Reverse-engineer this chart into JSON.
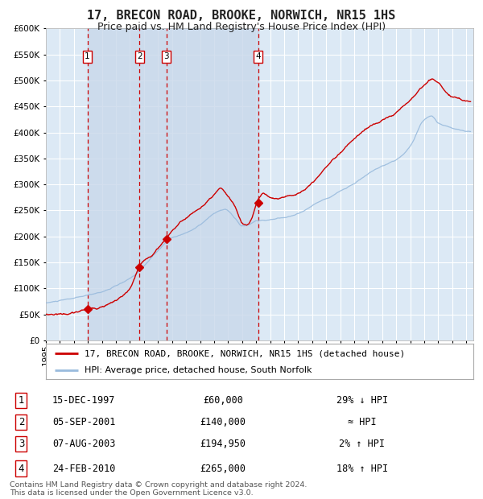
{
  "title": "17, BRECON ROAD, BROOKE, NORWICH, NR15 1HS",
  "subtitle": "Price paid vs. HM Land Registry's House Price Index (HPI)",
  "background_color": "#dce9f5",
  "grid_color": "#ffffff",
  "sale_color": "#cc0000",
  "hpi_color": "#99bbdd",
  "purchases": [
    {
      "num": 1,
      "date_str": "15-DEC-1997",
      "price": 60000,
      "rel": "29% ↓ HPI",
      "x_year": 1997.96
    },
    {
      "num": 2,
      "date_str": "05-SEP-2001",
      "price": 140000,
      "rel": "≈ HPI",
      "x_year": 2001.67
    },
    {
      "num": 3,
      "date_str": "07-AUG-2003",
      "price": 194950,
      "rel": "2% ↑ HPI",
      "x_year": 2003.6
    },
    {
      "num": 4,
      "date_str": "24-FEB-2010",
      "price": 265000,
      "rel": "18% ↑ HPI",
      "x_year": 2010.15
    }
  ],
  "legend_line1": "17, BRECON ROAD, BROOKE, NORWICH, NR15 1HS (detached house)",
  "legend_line2": "HPI: Average price, detached house, South Norfolk",
  "footer1": "Contains HM Land Registry data © Crown copyright and database right 2024.",
  "footer2": "This data is licensed under the Open Government Licence v3.0.",
  "ylim": [
    0,
    600000
  ],
  "yticks": [
    0,
    50000,
    100000,
    150000,
    200000,
    250000,
    300000,
    350000,
    400000,
    450000,
    500000,
    550000,
    600000
  ],
  "xlim_start": 1995.0,
  "xlim_end": 2025.5,
  "dashed_vline_color": "#cc0000",
  "shade_region_color": "#c5d8ed",
  "title_fontsize": 11,
  "subtitle_fontsize": 9,
  "tick_fontsize": 7.5,
  "legend_fontsize": 8,
  "table_fontsize": 8.5
}
